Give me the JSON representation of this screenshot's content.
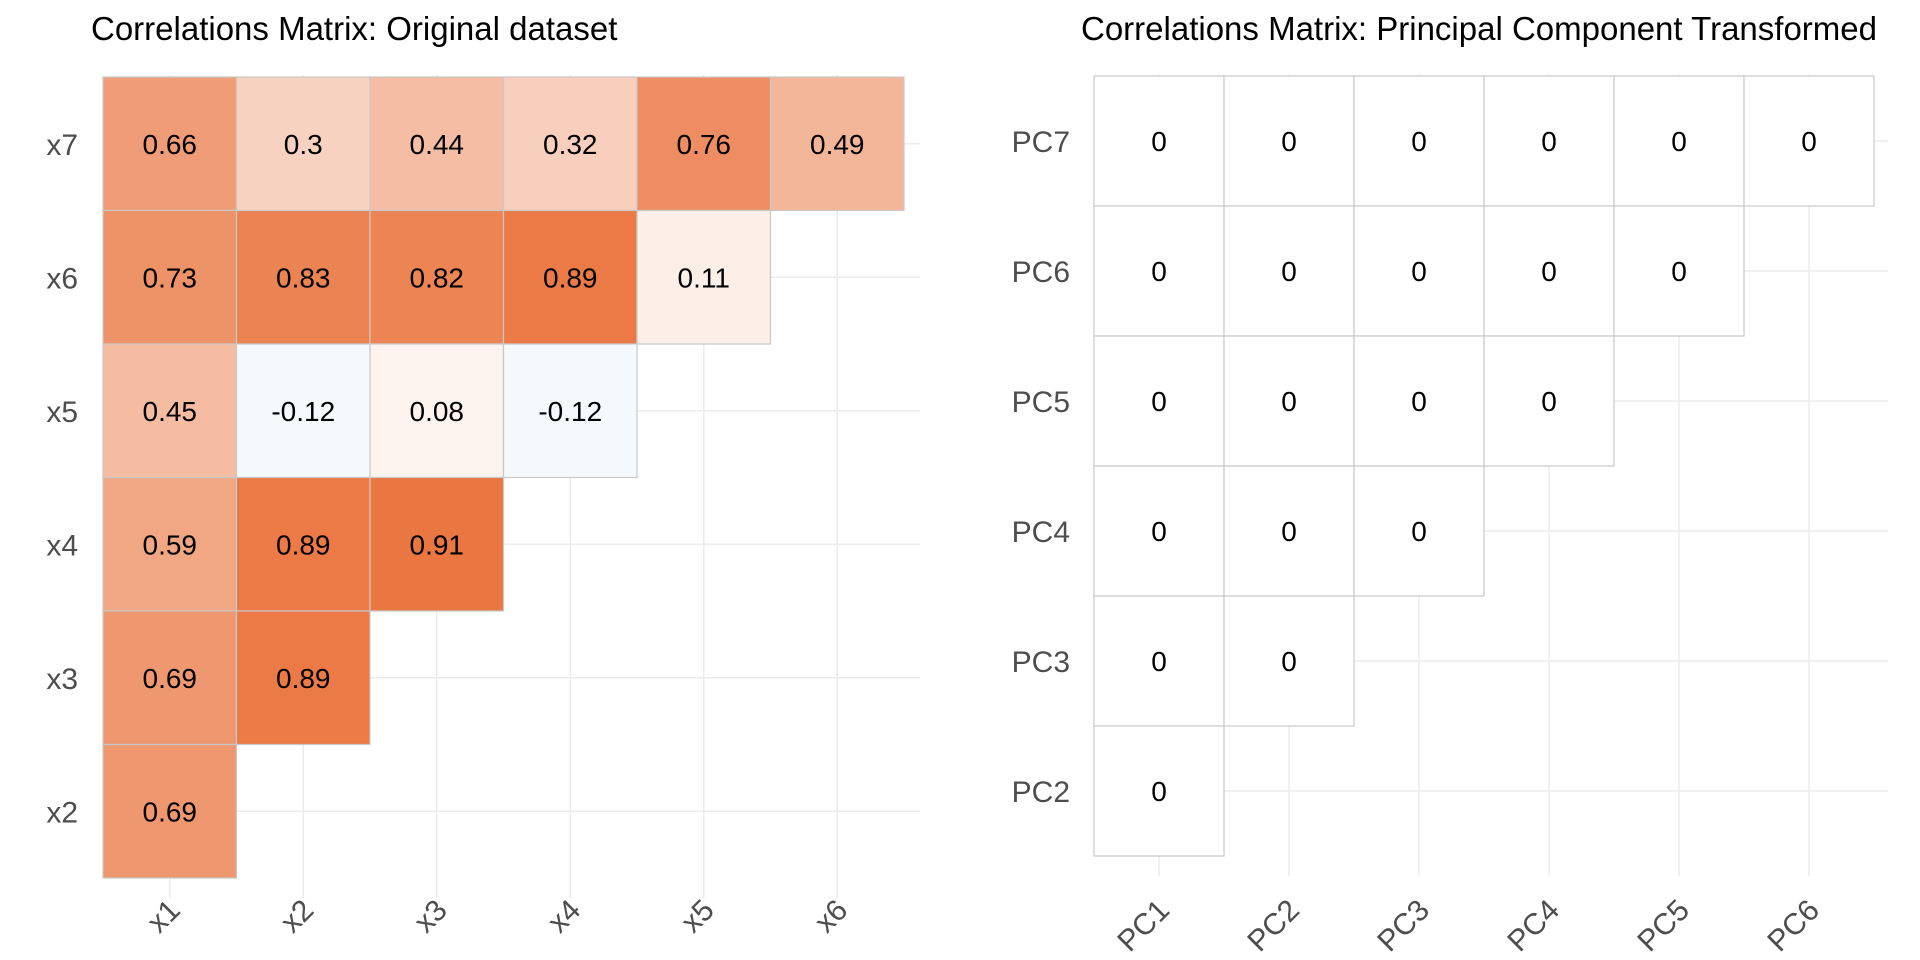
{
  "chart_data": [
    {
      "type": "heatmap",
      "title": "Correlations Matrix: Original dataset",
      "x_categories": [
        "x1",
        "x2",
        "x3",
        "x4",
        "x5",
        "x6"
      ],
      "y_categories": [
        "x2",
        "x3",
        "x4",
        "x5",
        "x6",
        "x7"
      ],
      "cells": [
        {
          "x": "x1",
          "y": "x7",
          "value": 0.66,
          "label": "0.66"
        },
        {
          "x": "x2",
          "y": "x7",
          "value": 0.3,
          "label": "0.3"
        },
        {
          "x": "x3",
          "y": "x7",
          "value": 0.44,
          "label": "0.44"
        },
        {
          "x": "x4",
          "y": "x7",
          "value": 0.32,
          "label": "0.32"
        },
        {
          "x": "x5",
          "y": "x7",
          "value": 0.76,
          "label": "0.76"
        },
        {
          "x": "x6",
          "y": "x7",
          "value": 0.49,
          "label": "0.49"
        },
        {
          "x": "x1",
          "y": "x6",
          "value": 0.73,
          "label": "0.73"
        },
        {
          "x": "x2",
          "y": "x6",
          "value": 0.83,
          "label": "0.83"
        },
        {
          "x": "x3",
          "y": "x6",
          "value": 0.82,
          "label": "0.82"
        },
        {
          "x": "x4",
          "y": "x6",
          "value": 0.89,
          "label": "0.89"
        },
        {
          "x": "x5",
          "y": "x6",
          "value": 0.11,
          "label": "0.11"
        },
        {
          "x": "x1",
          "y": "x5",
          "value": 0.45,
          "label": "0.45"
        },
        {
          "x": "x2",
          "y": "x5",
          "value": -0.12,
          "label": "-0.12"
        },
        {
          "x": "x3",
          "y": "x5",
          "value": 0.08,
          "label": "0.08"
        },
        {
          "x": "x4",
          "y": "x5",
          "value": -0.12,
          "label": "-0.12"
        },
        {
          "x": "x1",
          "y": "x4",
          "value": 0.59,
          "label": "0.59"
        },
        {
          "x": "x2",
          "y": "x4",
          "value": 0.89,
          "label": "0.89"
        },
        {
          "x": "x3",
          "y": "x4",
          "value": 0.91,
          "label": "0.91"
        },
        {
          "x": "x1",
          "y": "x3",
          "value": 0.69,
          "label": "0.69"
        },
        {
          "x": "x2",
          "y": "x3",
          "value": 0.89,
          "label": "0.89"
        },
        {
          "x": "x1",
          "y": "x2",
          "value": 0.69,
          "label": "0.69"
        }
      ],
      "color_scale": {
        "negative": "#2166ac",
        "zero": "#ffffff",
        "positive": "#e8692f"
      },
      "grid": true
    },
    {
      "type": "heatmap",
      "title": "Correlations Matrix: Principal Component Transformed",
      "x_categories": [
        "PC1",
        "PC2",
        "PC3",
        "PC4",
        "PC5",
        "PC6"
      ],
      "y_categories": [
        "PC2",
        "PC3",
        "PC4",
        "PC5",
        "PC6",
        "PC7"
      ],
      "cells": [
        {
          "x": "PC1",
          "y": "PC7",
          "value": 0,
          "label": "0"
        },
        {
          "x": "PC2",
          "y": "PC7",
          "value": 0,
          "label": "0"
        },
        {
          "x": "PC3",
          "y": "PC7",
          "value": 0,
          "label": "0"
        },
        {
          "x": "PC4",
          "y": "PC7",
          "value": 0,
          "label": "0"
        },
        {
          "x": "PC5",
          "y": "PC7",
          "value": 0,
          "label": "0"
        },
        {
          "x": "PC6",
          "y": "PC7",
          "value": 0,
          "label": "0"
        },
        {
          "x": "PC1",
          "y": "PC6",
          "value": 0,
          "label": "0"
        },
        {
          "x": "PC2",
          "y": "PC6",
          "value": 0,
          "label": "0"
        },
        {
          "x": "PC3",
          "y": "PC6",
          "value": 0,
          "label": "0"
        },
        {
          "x": "PC4",
          "y": "PC6",
          "value": 0,
          "label": "0"
        },
        {
          "x": "PC5",
          "y": "PC6",
          "value": 0,
          "label": "0"
        },
        {
          "x": "PC1",
          "y": "PC5",
          "value": 0,
          "label": "0"
        },
        {
          "x": "PC2",
          "y": "PC5",
          "value": 0,
          "label": "0"
        },
        {
          "x": "PC3",
          "y": "PC5",
          "value": 0,
          "label": "0"
        },
        {
          "x": "PC4",
          "y": "PC5",
          "value": 0,
          "label": "0"
        },
        {
          "x": "PC1",
          "y": "PC4",
          "value": 0,
          "label": "0"
        },
        {
          "x": "PC2",
          "y": "PC4",
          "value": 0,
          "label": "0"
        },
        {
          "x": "PC3",
          "y": "PC4",
          "value": 0,
          "label": "0"
        },
        {
          "x": "PC1",
          "y": "PC3",
          "value": 0,
          "label": "0"
        },
        {
          "x": "PC2",
          "y": "PC3",
          "value": 0,
          "label": "0"
        },
        {
          "x": "PC1",
          "y": "PC2",
          "value": 0,
          "label": "0"
        }
      ],
      "color_scale": {
        "negative": "#2166ac",
        "zero": "#ffffff",
        "positive": "#e8692f"
      },
      "grid": true
    }
  ]
}
